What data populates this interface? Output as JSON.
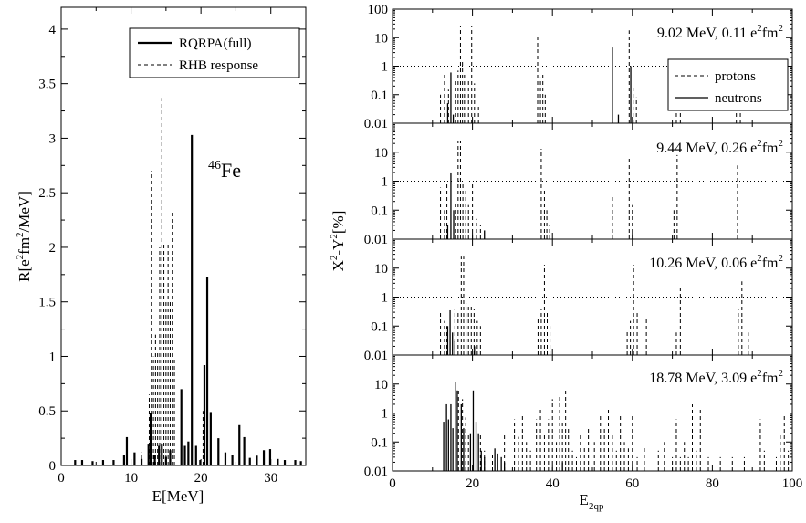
{
  "left_panel": {
    "ylabel_main": "R[e",
    "ylabel_sup1": "2",
    "ylabel_mid": "fm",
    "ylabel_sup2": "2",
    "ylabel_end": "/MeV]",
    "xlabel": "E[MeV]",
    "nucleus_mass": "46",
    "nucleus_symbol": "Fe",
    "legend": {
      "full_label": "RQRPA(full)",
      "rhb_label": "RHB response"
    }
  },
  "right_panels": {
    "ylabel_main": "X",
    "ylabel_sup1": "2",
    "ylabel_mid": "-Y",
    "ylabel_sup2": "2",
    "ylabel_end": "[%]",
    "xlabel_main": "E",
    "xlabel_sub": "2qp",
    "legend": {
      "protons_label": "protons",
      "neutrons_label": "neutrons"
    },
    "panel_labels": [
      {
        "main": "9.02 MeV, 0.11 e",
        "sup1": "2",
        "mid": "fm",
        "sup2": "2"
      },
      {
        "main": "9.44 MeV, 0.26 e",
        "sup1": "2",
        "mid": "fm",
        "sup2": "2"
      },
      {
        "main": "10.26 MeV, 0.06 e",
        "sup1": "2",
        "mid": "fm",
        "sup2": "2"
      },
      {
        "main": "18.78 MeV, 3.09 e",
        "sup1": "2",
        "mid": "fm",
        "sup2": "2"
      }
    ]
  },
  "chart_data": [
    {
      "type": "bar",
      "title": "",
      "xlabel": "E[MeV]",
      "ylabel": "R[e^2fm^2/MeV]",
      "xlim": [
        0,
        35
      ],
      "ylim": [
        0,
        4.2
      ],
      "xticks": [
        0,
        10,
        20,
        30
      ],
      "yticks": [
        0,
        0.5,
        1,
        1.5,
        2,
        2.5,
        3,
        3.5,
        4
      ],
      "ytick_labels": [
        "0",
        "0.5",
        "1",
        "1.5",
        "2",
        "2.5",
        "3",
        "3.5",
        "4"
      ],
      "legend_position": "top-right",
      "series": [
        {
          "name": "RQRPA(full)",
          "line": "solid",
          "x": [
            2,
            3,
            4.5,
            6,
            7.5,
            9,
            9.4,
            10.5,
            11.5,
            12.5,
            12.8,
            13.4,
            14,
            14.4,
            15,
            15.6,
            17.2,
            17.7,
            18.2,
            18.7,
            19.3,
            19.9,
            20.5,
            20.9,
            21.4,
            22.5,
            23.5,
            24.5,
            25.5,
            26.2,
            27,
            28,
            29,
            29.9,
            31,
            32,
            33.5,
            34.3
          ],
          "y": [
            0.05,
            0.05,
            0.04,
            0.05,
            0.05,
            0.1,
            0.26,
            0.12,
            0.06,
            0.2,
            0.48,
            0.1,
            0.18,
            0.2,
            0.08,
            0.14,
            0.7,
            0.18,
            0.22,
            3.03,
            0.18,
            0.05,
            0.92,
            1.73,
            0.49,
            0.25,
            0.12,
            0.1,
            0.37,
            0.26,
            0.07,
            0.09,
            0.14,
            0.15,
            0.06,
            0.05,
            0.05,
            0.04
          ]
        },
        {
          "name": "RHB response",
          "line": "dashed",
          "x": [
            11.5,
            12.6,
            12.9,
            13.2,
            13.5,
            13.8,
            14.1,
            14.4,
            14.7,
            15.0,
            15.3,
            15.6,
            15.9,
            16.2,
            20.3
          ],
          "y": [
            0.12,
            0.65,
            2.7,
            1.0,
            1.2,
            1.05,
            2.0,
            3.37,
            2.05,
            1.5,
            2.05,
            1.5,
            2.32,
            0.98,
            0.5
          ]
        }
      ]
    },
    {
      "type": "bar",
      "title": "9.02 MeV, 0.11 e^2fm^2",
      "xlabel": "E_2qp",
      "ylabel": "X^2-Y^2[%]",
      "yscale": "log",
      "xlim": [
        0,
        100
      ],
      "ylim": [
        0.01,
        100
      ],
      "yticks": [
        0.01,
        0.1,
        1,
        10,
        100
      ],
      "ytick_labels": [
        "0.01",
        "0.1",
        "1",
        "10",
        "100"
      ],
      "reference_line": 1,
      "grid": false,
      "legend_position": "right",
      "series": [
        {
          "name": "protons",
          "line": "dashed",
          "x": [
            12,
            13,
            14,
            15.8,
            16.4,
            17,
            17.5,
            18,
            19,
            19.8,
            20.5,
            21.5,
            36.3,
            37,
            37.6,
            38.2,
            59.2,
            60.2,
            61,
            71,
            72,
            86,
            87
          ],
          "y": [
            0.1,
            0.6,
            0.15,
            0.3,
            0.7,
            25,
            1.5,
            0.6,
            0.3,
            25,
            0.25,
            0.04,
            13,
            0.4,
            0.5,
            0.1,
            18,
            0.2,
            0.08,
            0.1,
            0.04,
            0.1,
            0.03
          ]
        },
        {
          "name": "neutrons",
          "line": "solid",
          "x": [
            13.8,
            14.6,
            15.2,
            55,
            56.5,
            59.6
          ],
          "y": [
            0.05,
            0.6,
            0.02,
            4.5,
            0.02,
            1.0
          ]
        }
      ]
    },
    {
      "type": "bar",
      "title": "9.44 MeV, 0.26 e^2fm^2",
      "xlabel": "E_2qp",
      "ylabel": "X^2-Y^2[%]",
      "yscale": "log",
      "xlim": [
        0,
        100
      ],
      "ylim": [
        0.01,
        100
      ],
      "yticks": [
        0.01,
        0.1,
        1,
        10
      ],
      "ytick_labels": [
        "0.01",
        "0.1",
        "1",
        "10"
      ],
      "reference_line": 1,
      "series": [
        {
          "name": "protons",
          "line": "dashed",
          "x": [
            12,
            13,
            13.6,
            15.8,
            16.4,
            17,
            17.6,
            18.3,
            19,
            20,
            21,
            22,
            37.2,
            38,
            38.6,
            39.3,
            55,
            59.2,
            60,
            70.4,
            71.2,
            86.3
          ],
          "y": [
            0.6,
            0.1,
            0.9,
            0.2,
            25,
            25,
            0.8,
            0.5,
            0.15,
            0.8,
            0.05,
            0.03,
            13,
            0.5,
            0.1,
            0.03,
            0.3,
            7,
            0.15,
            0.1,
            8,
            3.5
          ]
        },
        {
          "name": "neutrons",
          "line": "solid",
          "x": [
            13.8,
            14.6,
            15.3,
            23
          ],
          "y": [
            0.03,
            2,
            0.1,
            0.02
          ]
        }
      ]
    },
    {
      "type": "bar",
      "title": "10.26 MeV, 0.06 e^2fm^2",
      "xlabel": "E_2qp",
      "ylabel": "X^2-Y^2[%]",
      "yscale": "log",
      "xlim": [
        0,
        100
      ],
      "ylim": [
        0.01,
        100
      ],
      "yticks": [
        0.01,
        0.1,
        1,
        10
      ],
      "ytick_labels": [
        "0.01",
        "0.1",
        "1",
        "10"
      ],
      "reference_line": 1,
      "series": [
        {
          "name": "protons",
          "line": "dashed",
          "x": [
            12,
            13,
            13.6,
            15.6,
            16.4,
            17.2,
            17.8,
            18.4,
            19,
            19.7,
            20.4,
            21.2,
            22,
            36.4,
            37.2,
            38,
            38.7,
            39.4,
            58.7,
            59.5,
            60.3,
            61.2,
            63.5,
            71,
            72,
            86.5,
            87.4,
            89
          ],
          "y": [
            0.3,
            0.15,
            0.1,
            0.4,
            0.3,
            25,
            25,
            0.6,
            0.5,
            0.5,
            0.4,
            0.15,
            0.1,
            0.2,
            0.4,
            13,
            0.3,
            0.1,
            0.08,
            0.15,
            13,
            0.3,
            0.2,
            0.06,
            2,
            0.4,
            3.5,
            0.06
          ]
        },
        {
          "name": "neutrons",
          "line": "solid",
          "x": [
            13.8,
            14.4,
            15,
            15.6,
            20.5
          ],
          "y": [
            0.1,
            0.35,
            0.06,
            0.03,
            0.02
          ]
        }
      ]
    },
    {
      "type": "bar",
      "title": "18.78 MeV, 3.09 e^2fm^2",
      "xlabel": "E_2qp",
      "ylabel": "X^2-Y^2[%]",
      "yscale": "log",
      "xlim": [
        0,
        100
      ],
      "ylim": [
        0.01,
        100
      ],
      "xticks": [
        0,
        20,
        40,
        60,
        80,
        100
      ],
      "yticks": [
        0.01,
        0.1,
        1,
        10
      ],
      "ytick_labels": [
        "0.01",
        "0.1",
        "1",
        "10"
      ],
      "reference_line": 1,
      "series": [
        {
          "name": "protons",
          "line": "dashed",
          "x": [
            16.5,
            17.5,
            18.3,
            19,
            22,
            23,
            25,
            28,
            30.5,
            31.5,
            32.5,
            33.5,
            34.5,
            36,
            37,
            38,
            39,
            40,
            41,
            41.8,
            42.5,
            43.3,
            44,
            45,
            46,
            47,
            48,
            49,
            50.5,
            52,
            53,
            54,
            55,
            56,
            57,
            58,
            59,
            60,
            61.2,
            63,
            66.5,
            68,
            70,
            71,
            72,
            73,
            74,
            75,
            76,
            77,
            79,
            82,
            85,
            88,
            92,
            93,
            96,
            97,
            98,
            99
          ],
          "y": [
            6,
            3,
            0.7,
            0.2,
            0.2,
            0.05,
            0.04,
            0.2,
            0.6,
            0.15,
            0.9,
            0.1,
            0.05,
            0.6,
            1.5,
            0.2,
            0.6,
            3,
            0.1,
            4,
            0.5,
            6,
            0.3,
            0.05,
            0.03,
            0.2,
            0.08,
            0.3,
            0.1,
            0.8,
            0.3,
            1.5,
            0.2,
            0.05,
            1,
            0.1,
            0.06,
            0.8,
            0.03,
            0.08,
            0.05,
            0.1,
            0.03,
            0.6,
            0.03,
            0.1,
            0.03,
            2,
            0.05,
            1.5,
            0.03,
            0.03,
            0.03,
            0.03,
            0.6,
            0.05,
            0.03,
            0.2,
            1,
            0.05
          ]
        },
        {
          "name": "neutrons",
          "line": "solid",
          "x": [
            12.8,
            13.5,
            14,
            14.6,
            15.1,
            15.7,
            16.2,
            17.2,
            17.8,
            19.5,
            20.2,
            20.9,
            21.5,
            22.2,
            23,
            25.6,
            26.3,
            27.2,
            28,
            42.5
          ],
          "y": [
            0.5,
            2,
            0.6,
            2,
            0.3,
            12,
            6,
            2,
            0.3,
            0.2,
            6,
            0.5,
            0.2,
            0.05,
            0.03,
            0.06,
            0.04,
            0.03,
            0.02,
            0.02
          ]
        }
      ]
    }
  ]
}
